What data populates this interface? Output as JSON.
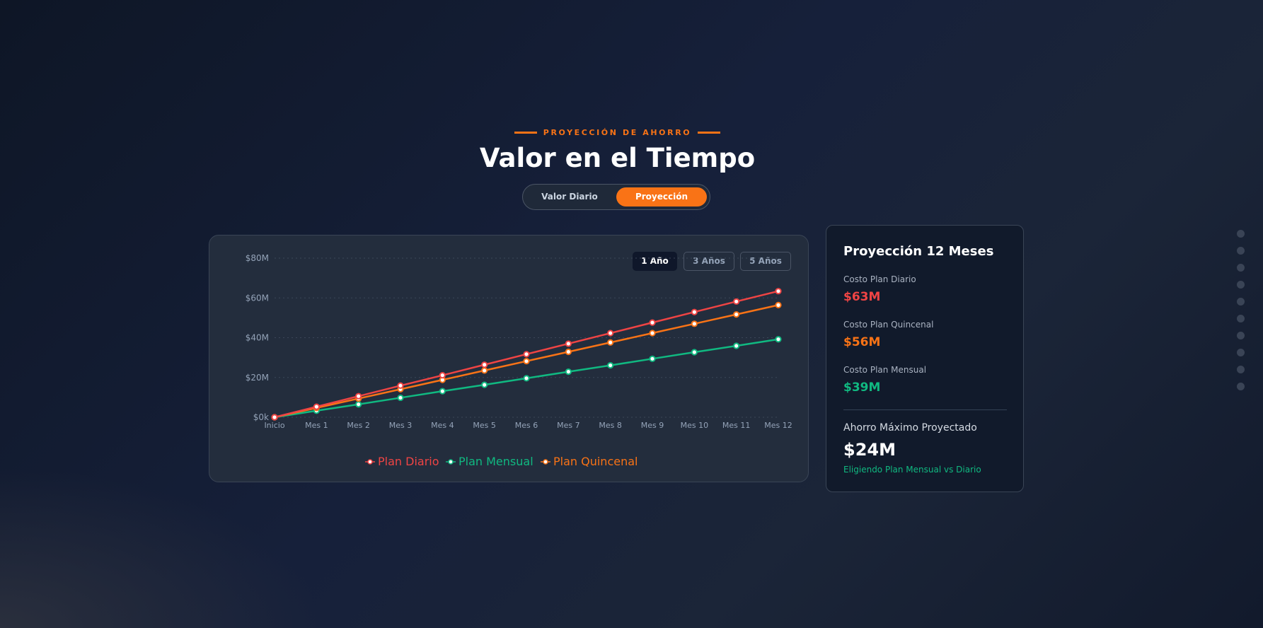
{
  "header": {
    "eyebrow": "PROYECCIÓN DE AHORRO",
    "title": "Valor en el Tiempo",
    "toggle": [
      {
        "label": "Valor Diario",
        "active": false
      },
      {
        "label": "Proyección",
        "active": true
      }
    ]
  },
  "ranges": [
    {
      "label": "1 Año",
      "active": true
    },
    {
      "label": "3 Años",
      "active": false
    },
    {
      "label": "5 Años",
      "active": false
    }
  ],
  "chart_data": {
    "type": "line",
    "categories": [
      "Inicio",
      "Mes 1",
      "Mes 2",
      "Mes 3",
      "Mes 4",
      "Mes 5",
      "Mes 6",
      "Mes 7",
      "Mes 8",
      "Mes 9",
      "Mes 10",
      "Mes 11",
      "Mes 12"
    ],
    "ylim": [
      0,
      80
    ],
    "yticks": [
      0,
      20,
      40,
      60,
      80
    ],
    "ytick_labels": [
      "$0k",
      "$20M",
      "$40M",
      "$60M",
      "$80M"
    ],
    "grid": true,
    "legend": "bottom",
    "series": [
      {
        "name": "Plan Diario",
        "color": "#ef4444",
        "values": [
          0,
          5.3,
          10.6,
          15.9,
          21.1,
          26.4,
          31.7,
          37.0,
          42.3,
          47.6,
          52.9,
          58.2,
          63.4
        ]
      },
      {
        "name": "Plan Mensual",
        "color": "#10b981",
        "values": [
          0,
          3.3,
          6.5,
          9.8,
          13.1,
          16.3,
          19.6,
          22.9,
          26.1,
          29.4,
          32.7,
          35.9,
          39.2
        ]
      },
      {
        "name": "Plan Quincenal",
        "color": "#f97316",
        "values": [
          0,
          4.7,
          9.4,
          14.1,
          18.8,
          23.5,
          28.2,
          32.9,
          37.6,
          42.3,
          47.0,
          51.7,
          56.4
        ]
      }
    ]
  },
  "summary": {
    "title": "Proyección 12 Meses",
    "items": [
      {
        "label": "Costo Plan Diario",
        "value": "$63M",
        "color": "#ef4444"
      },
      {
        "label": "Costo Plan Quincenal",
        "value": "$56M",
        "color": "#f97316"
      },
      {
        "label": "Costo Plan Mensual",
        "value": "$39M",
        "color": "#10b981"
      }
    ],
    "max_label": "Ahorro Máximo Proyectado",
    "max_value": "$24M",
    "note": "Eligiendo Plan Mensual vs Diario"
  }
}
